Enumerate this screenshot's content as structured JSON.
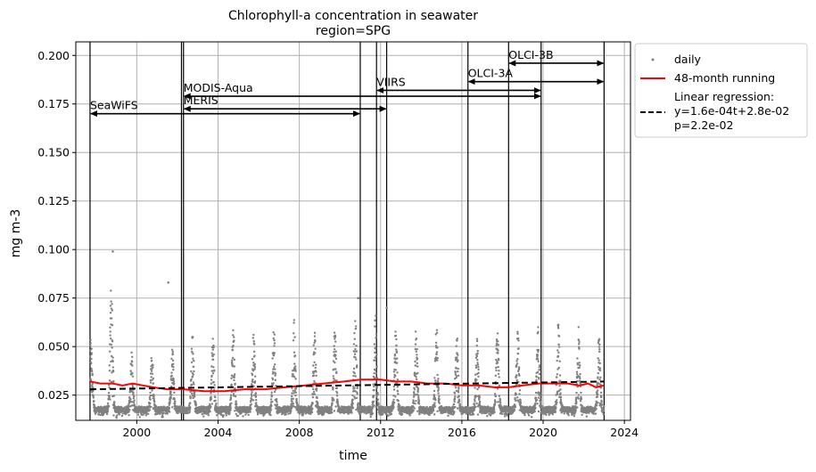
{
  "chart_data": {
    "type": "scatter",
    "title": "Chlorophyll-a concentration in seawater",
    "subtitle": "region=SPG",
    "xlabel": "time",
    "ylabel": "mg m-3",
    "xlim": [
      1997.0,
      2024.3
    ],
    "ylim": [
      0.012,
      0.207
    ],
    "x_ticks": [
      2000,
      2004,
      2008,
      2012,
      2016,
      2020,
      2024
    ],
    "x_tick_labels": [
      "2000",
      "2004",
      "2008",
      "2012",
      "2016",
      "2020",
      "2024"
    ],
    "y_ticks": [
      0.025,
      0.05,
      0.075,
      0.1,
      0.125,
      0.15,
      0.175,
      0.2
    ],
    "y_tick_labels": [
      "0.025",
      "0.050",
      "0.075",
      "0.100",
      "0.125",
      "0.150",
      "0.175",
      "0.200"
    ],
    "grid": true,
    "legend_position": "outside-top-right",
    "legend": [
      {
        "label": "daily",
        "style": "dots",
        "color": "#808080"
      },
      {
        "label": "48-month running",
        "style": "line",
        "color": "#ff0000"
      },
      {
        "label": "Linear regression:\ny=1.6e-04t+2.8e-02\np=2.2e-02",
        "style": "dashed",
        "color": "#000000"
      }
    ],
    "series": [
      {
        "name": "daily",
        "kind": "scatter",
        "color": "#808080",
        "x_range": [
          1997.7,
          2023.0
        ],
        "seasonal_baseline": 0.018,
        "annual_peaks": [
          [
            1998.75,
            0.087
          ],
          [
            1999.75,
            0.048
          ],
          [
            2000.75,
            0.047
          ],
          [
            2001.75,
            0.05
          ],
          [
            2002.75,
            0.058
          ],
          [
            2003.75,
            0.056
          ],
          [
            2004.75,
            0.06
          ],
          [
            2005.75,
            0.058
          ],
          [
            2006.75,
            0.061
          ],
          [
            2007.75,
            0.064
          ],
          [
            2008.75,
            0.061
          ],
          [
            2009.75,
            0.063
          ],
          [
            2010.75,
            0.072
          ],
          [
            2011.75,
            0.068
          ],
          [
            2012.75,
            0.064
          ],
          [
            2013.75,
            0.062
          ],
          [
            2014.75,
            0.063
          ],
          [
            2015.75,
            0.058
          ],
          [
            2016.75,
            0.058
          ],
          [
            2017.75,
            0.062
          ],
          [
            2018.75,
            0.061
          ],
          [
            2019.75,
            0.063
          ],
          [
            2020.75,
            0.064
          ],
          [
            2021.75,
            0.063
          ],
          [
            2022.75,
            0.06
          ]
        ],
        "outliers": [
          [
            1998.82,
            0.099
          ],
          [
            2001.55,
            0.083
          ],
          [
            2010.9,
            0.075
          ],
          [
            2012.3,
            0.07
          ]
        ]
      },
      {
        "name": "48-month running",
        "kind": "line",
        "color": "#ff0000",
        "points": [
          [
            1997.7,
            0.032
          ],
          [
            1998.2,
            0.031
          ],
          [
            1998.8,
            0.031
          ],
          [
            1999.3,
            0.03
          ],
          [
            1999.8,
            0.031
          ],
          [
            2000.3,
            0.03
          ],
          [
            2000.8,
            0.029
          ],
          [
            2001.5,
            0.028
          ],
          [
            2002.3,
            0.028
          ],
          [
            2003.3,
            0.027
          ],
          [
            2004.3,
            0.027
          ],
          [
            2005.3,
            0.028
          ],
          [
            2006.3,
            0.028
          ],
          [
            2007.3,
            0.029
          ],
          [
            2008.3,
            0.03
          ],
          [
            2009.2,
            0.031
          ],
          [
            2010.2,
            0.032
          ],
          [
            2011.0,
            0.033
          ],
          [
            2012.0,
            0.033
          ],
          [
            2012.7,
            0.032
          ],
          [
            2013.5,
            0.032
          ],
          [
            2014.3,
            0.031
          ],
          [
            2015.2,
            0.031
          ],
          [
            2016.0,
            0.03
          ],
          [
            2016.8,
            0.03
          ],
          [
            2017.6,
            0.029
          ],
          [
            2018.3,
            0.029
          ],
          [
            2019.0,
            0.03
          ],
          [
            2019.8,
            0.031
          ],
          [
            2020.5,
            0.031
          ],
          [
            2021.2,
            0.031
          ],
          [
            2021.8,
            0.03
          ],
          [
            2022.2,
            0.031
          ],
          [
            2022.6,
            0.029
          ],
          [
            2023.0,
            0.03
          ]
        ]
      },
      {
        "name": "Linear regression",
        "kind": "dashed-line",
        "color": "#000000",
        "slope": 0.00016,
        "points": [
          [
            1997.7,
            0.028
          ],
          [
            2023.0,
            0.032
          ]
        ]
      }
    ],
    "vertical_lines": [
      1997.7,
      2002.2,
      2002.3,
      2011.0,
      2011.8,
      2012.3,
      2016.3,
      2018.3,
      2019.9,
      2023.0
    ],
    "annotations": [
      {
        "label": "SeaWiFS",
        "start": 1997.7,
        "end": 2011.0,
        "y": 0.17
      },
      {
        "label": "MERIS",
        "start": 2002.3,
        "end": 2012.3,
        "y": 0.1725
      },
      {
        "label": "MODIS-Aqua",
        "start": 2002.3,
        "end": 2019.9,
        "y": 0.179
      },
      {
        "label": "VIIRS",
        "start": 2011.8,
        "end": 2019.9,
        "y": 0.182
      },
      {
        "label": "OLCI-3A",
        "start": 2016.3,
        "end": 2023.0,
        "y": 0.1865
      },
      {
        "label": "OLCI-3B",
        "start": 2018.3,
        "end": 2023.0,
        "y": 0.196
      }
    ]
  }
}
